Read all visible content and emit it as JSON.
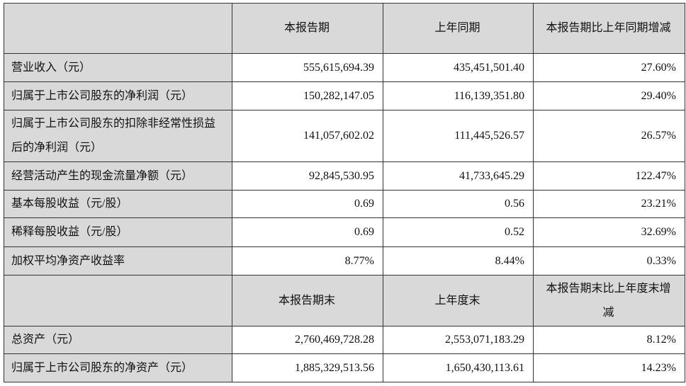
{
  "header1": {
    "col1": "本报告期",
    "col2": "上年同期",
    "col3": "本报告期比上年同期增减"
  },
  "rows1": [
    {
      "label": "营业收入（元）",
      "current": "555,615,694.39",
      "prior": "435,451,501.40",
      "change": "27.60%"
    },
    {
      "label": "归属于上市公司股东的净利润（元）",
      "current": "150,282,147.05",
      "prior": "116,139,351.80",
      "change": "29.40%"
    },
    {
      "label": "归属于上市公司股东的扣除非经常性损益后的净利润（元）",
      "current": "141,057,602.02",
      "prior": "111,445,526.57",
      "change": "26.57%"
    },
    {
      "label": "经营活动产生的现金流量净额（元）",
      "current": "92,845,530.95",
      "prior": "41,733,645.29",
      "change": "122.47%"
    },
    {
      "label": "基本每股收益（元/股）",
      "current": "0.69",
      "prior": "0.56",
      "change": "23.21%"
    },
    {
      "label": "稀释每股收益（元/股）",
      "current": "0.69",
      "prior": "0.52",
      "change": "32.69%"
    },
    {
      "label": "加权平均净资产收益率",
      "current": "8.77%",
      "prior": "8.44%",
      "change": "0.33%"
    }
  ],
  "header2": {
    "col1": "本报告期末",
    "col2": "上年度末",
    "col3": "本报告期末比上年度末增减"
  },
  "rows2": [
    {
      "label": "总资产（元）",
      "current": "2,760,469,728.28",
      "prior": "2,553,071,183.29",
      "change": "8.12%"
    },
    {
      "label": "归属于上市公司股东的净资产（元）",
      "current": "1,885,329,513.56",
      "prior": "1,650,430,113.61",
      "change": "14.23%"
    }
  ]
}
